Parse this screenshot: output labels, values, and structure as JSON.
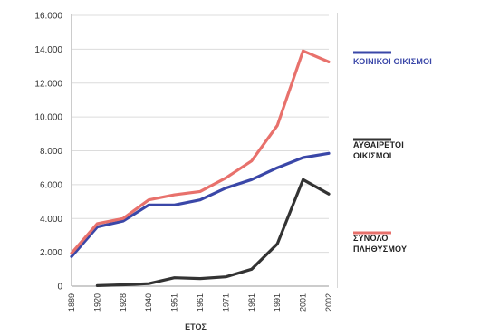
{
  "chart_data": {
    "type": "line",
    "xlabel": "ΕΤΟΣ",
    "ylabel": "",
    "ylim": [
      0,
      16000
    ],
    "y_ticks": [
      0,
      2000,
      4000,
      6000,
      8000,
      10000,
      12000,
      14000,
      16000
    ],
    "y_tick_labels": [
      "0",
      "2.000",
      "4.000",
      "6.000",
      "8.000",
      "10.000",
      "12.000",
      "14.000",
      "16.000"
    ],
    "categories": [
      "1889",
      "1920",
      "1928",
      "1940",
      "1951",
      "1961",
      "1971",
      "1981",
      "1991",
      "2001",
      "2002"
    ],
    "grid": "horizontal",
    "legend_position": "right",
    "series": [
      {
        "name": "ΚΟΙΝΙΚΟΙ ΟΙΚΙΣΜΟΙ",
        "color": "#3a47a8",
        "values": [
          1750,
          3500,
          3850,
          4800,
          4800,
          5100,
          5800,
          6300,
          7000,
          7600,
          7850
        ]
      },
      {
        "name": "ΑΥΘΑΙΡΕΤΟΙ ΟΙΚΙΣΜΟΙ",
        "color": "#333333",
        "values": [
          null,
          30,
          80,
          150,
          500,
          450,
          550,
          1000,
          2500,
          6300,
          5450
        ]
      },
      {
        "name": "ΣΥΝΟΛΟ ΠΛΗΘΥΣΜΟΥ",
        "color": "#e8716c",
        "values": [
          1950,
          3700,
          4000,
          5100,
          5400,
          5600,
          6400,
          7400,
          9500,
          13900,
          13250
        ]
      }
    ]
  }
}
